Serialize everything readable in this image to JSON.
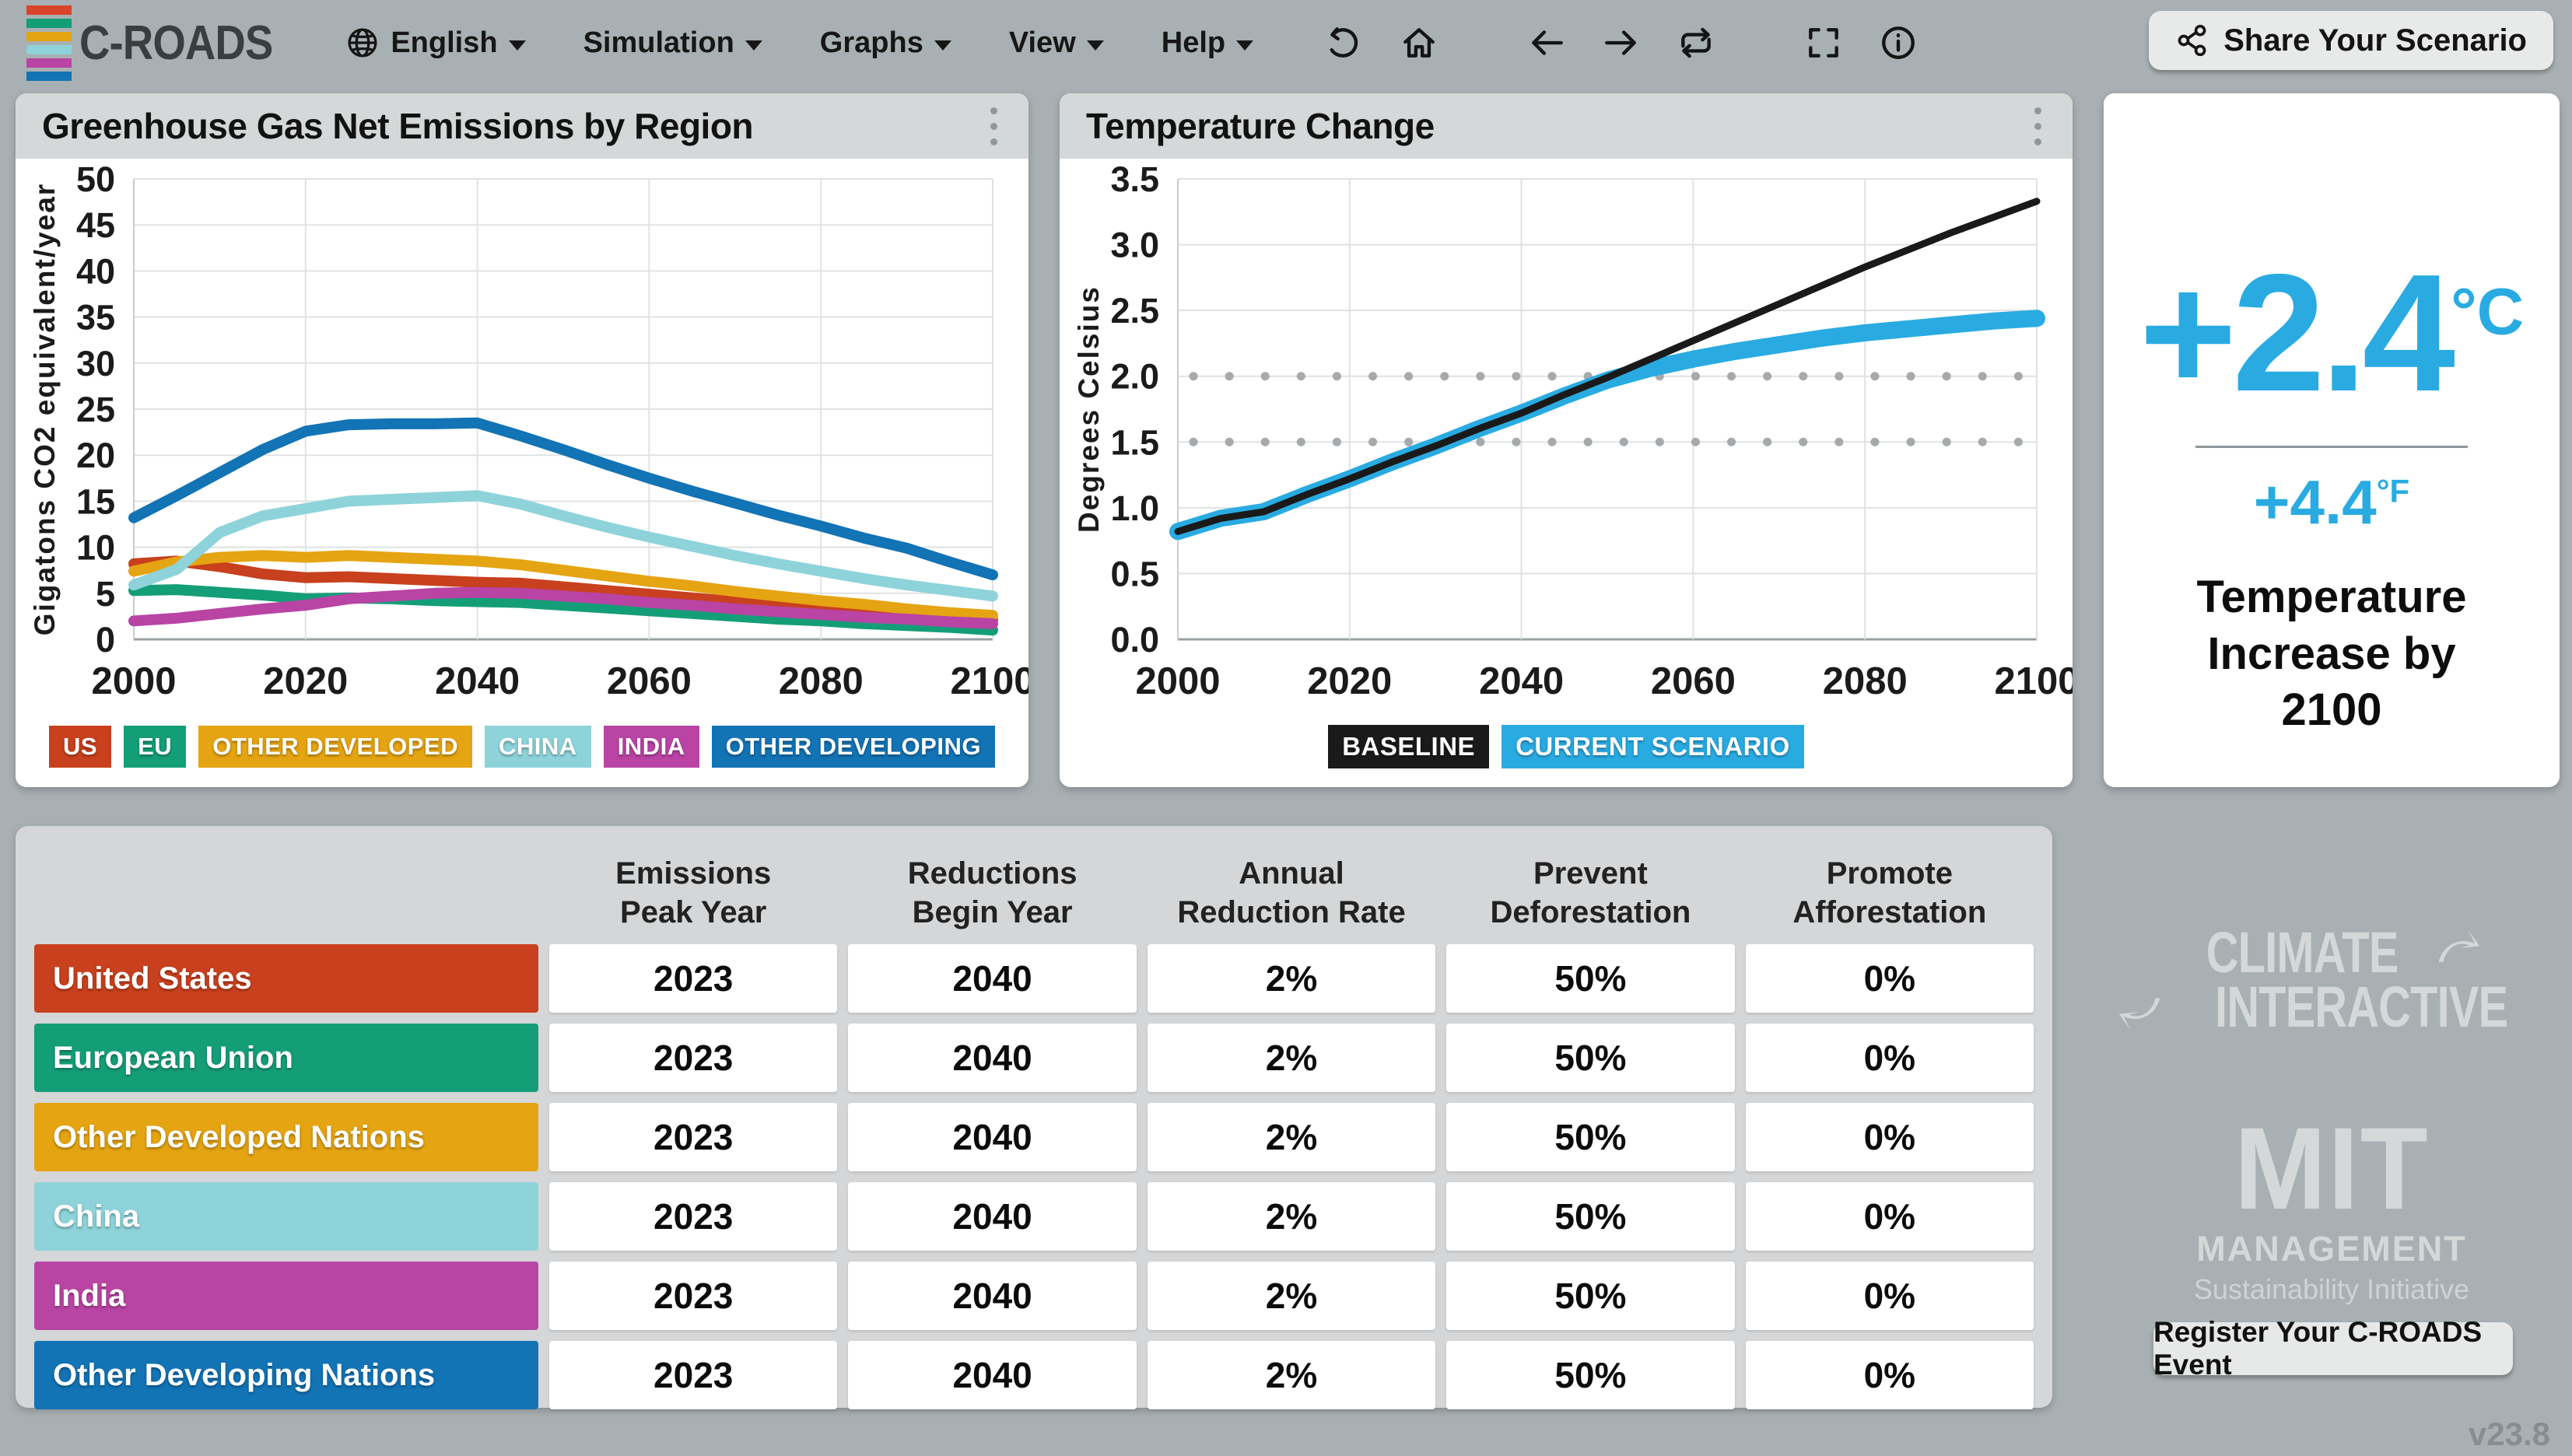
{
  "navbar": {
    "logo_text": "C-ROADS",
    "logo_bar_colors": [
      "#d8432a",
      "#149e78",
      "#e5a411",
      "#8ed3da",
      "#b944a4",
      "#1273b5"
    ],
    "menus": [
      {
        "label": "English"
      },
      {
        "label": "Simulation"
      },
      {
        "label": "Graphs"
      },
      {
        "label": "View"
      },
      {
        "label": "Help"
      }
    ],
    "share_button_label": "Share Your Scenario"
  },
  "emissions_panel": {
    "title": "Greenhouse Gas Net Emissions by Region"
  },
  "temperature_panel": {
    "title": "Temperature Change"
  },
  "summary_panel": {
    "value_c": "+2.4",
    "unit_c": "°C",
    "value_f": "+4.4",
    "unit_f": "°F",
    "caption": "Temperature Increase by 2100"
  },
  "table": {
    "columns": [
      [
        "Emissions",
        "Peak Year"
      ],
      [
        "Reductions",
        "Begin Year"
      ],
      [
        "Annual",
        "Reduction Rate"
      ],
      [
        "Prevent",
        "Deforestation"
      ],
      [
        "Promote",
        "Afforestation"
      ]
    ],
    "rows": [
      {
        "region": "United States",
        "color": "#c8401e",
        "values": [
          "2023",
          "2040",
          "2%",
          "50%",
          "0%"
        ]
      },
      {
        "region": "European Union",
        "color": "#149e78",
        "values": [
          "2023",
          "2040",
          "2%",
          "50%",
          "0%"
        ]
      },
      {
        "region": "Other Developed Nations",
        "color": "#e5a411",
        "values": [
          "2023",
          "2040",
          "2%",
          "50%",
          "0%"
        ]
      },
      {
        "region": "China",
        "color": "#8ed3da",
        "values": [
          "2023",
          "2040",
          "2%",
          "50%",
          "0%"
        ]
      },
      {
        "region": "India",
        "color": "#b944a4",
        "values": [
          "2023",
          "2040",
          "2%",
          "50%",
          "0%"
        ]
      },
      {
        "region": "Other Developing Nations",
        "color": "#1273b5",
        "values": [
          "2023",
          "2040",
          "2%",
          "50%",
          "0%"
        ]
      }
    ]
  },
  "branding": {
    "climate_interactive_line1": "CLIMATE",
    "climate_interactive_line2": "INTERACTIVE",
    "mit_line1": "MIT",
    "mit_line2": "MANAGEMENT",
    "mit_line3": "Sustainability Initiative",
    "register_button_label": "Register Your C-ROADS Event",
    "version": "v23.8"
  },
  "chart_data": [
    {
      "type": "line",
      "title": "Greenhouse Gas Net Emissions by Region",
      "xlabel": "",
      "ylabel": "Gigatons CO2 equivalent/year",
      "ylim": [
        0,
        50
      ],
      "ytick_step": 5,
      "ytick_format": "int",
      "xlim": [
        2000,
        2100
      ],
      "xticks": [
        2000,
        2020,
        2040,
        2060,
        2080,
        2100
      ],
      "grid": true,
      "legend_position": "bottom",
      "x": [
        2000,
        2005,
        2010,
        2015,
        2020,
        2025,
        2030,
        2035,
        2040,
        2045,
        2050,
        2055,
        2060,
        2065,
        2070,
        2075,
        2080,
        2085,
        2090,
        2095,
        2100
      ],
      "series": [
        {
          "name": "US",
          "color": "#c8401e",
          "values": [
            8.2,
            8.5,
            7.9,
            7.1,
            6.7,
            6.8,
            6.6,
            6.4,
            6.2,
            6.1,
            5.7,
            5.3,
            4.9,
            4.5,
            4.1,
            3.7,
            3.4,
            3.0,
            2.7,
            2.4,
            2.1
          ]
        },
        {
          "name": "EU",
          "color": "#149e78",
          "values": [
            5.3,
            5.4,
            5.1,
            4.8,
            4.4,
            4.5,
            4.4,
            4.2,
            4.1,
            4.0,
            3.7,
            3.4,
            3.1,
            2.8,
            2.5,
            2.2,
            2.0,
            1.7,
            1.5,
            1.3,
            1.0
          ]
        },
        {
          "name": "OTHER DEVELOPED",
          "color": "#e5a411",
          "values": [
            7.4,
            8.4,
            8.9,
            9.1,
            8.9,
            9.1,
            8.9,
            8.7,
            8.5,
            8.1,
            7.5,
            6.9,
            6.3,
            5.8,
            5.2,
            4.7,
            4.2,
            3.8,
            3.3,
            2.9,
            2.6
          ]
        },
        {
          "name": "CHINA",
          "color": "#8ed3da",
          "values": [
            5.9,
            7.6,
            11.6,
            13.4,
            14.2,
            15.0,
            15.2,
            15.4,
            15.6,
            14.7,
            13.4,
            12.2,
            11.1,
            10.1,
            9.1,
            8.2,
            7.4,
            6.6,
            5.9,
            5.3,
            4.7
          ]
        },
        {
          "name": "INDIA",
          "color": "#b944a4",
          "values": [
            2.0,
            2.3,
            2.8,
            3.3,
            3.7,
            4.4,
            4.7,
            5.0,
            5.1,
            5.0,
            4.7,
            4.4,
            4.0,
            3.7,
            3.3,
            3.0,
            2.7,
            2.4,
            2.2,
            1.9,
            1.7
          ]
        },
        {
          "name": "OTHER DEVELOPING",
          "color": "#1273b5",
          "values": [
            13.2,
            15.6,
            18.1,
            20.6,
            22.6,
            23.3,
            23.4,
            23.4,
            23.5,
            22.1,
            20.6,
            19.0,
            17.5,
            16.1,
            14.8,
            13.5,
            12.3,
            11.0,
            9.9,
            8.4,
            7.0
          ]
        }
      ]
    },
    {
      "type": "line",
      "title": "Temperature Change",
      "xlabel": "",
      "ylabel": "Degrees Celsius",
      "ylim": [
        0,
        3.5
      ],
      "ytick_step": 0.5,
      "ytick_format": "1dp",
      "xlim": [
        2000,
        2100
      ],
      "xticks": [
        2000,
        2020,
        2040,
        2060,
        2080,
        2100
      ],
      "grid": true,
      "reference_lines": [
        1.5,
        2.0
      ],
      "legend_position": "bottom",
      "x": [
        2000,
        2005,
        2010,
        2015,
        2020,
        2025,
        2030,
        2035,
        2040,
        2045,
        2050,
        2055,
        2060,
        2065,
        2070,
        2075,
        2080,
        2085,
        2090,
        2095,
        2100
      ],
      "series": [
        {
          "name": "CURRENT SCENARIO",
          "color": "#29abe2",
          "values": [
            0.82,
            0.92,
            0.97,
            1.1,
            1.22,
            1.35,
            1.47,
            1.6,
            1.72,
            1.85,
            1.97,
            2.06,
            2.13,
            2.19,
            2.24,
            2.29,
            2.33,
            2.36,
            2.39,
            2.42,
            2.44
          ]
        },
        {
          "name": "BASELINE",
          "color": "#1a1a1a",
          "values": [
            0.82,
            0.92,
            0.97,
            1.1,
            1.22,
            1.35,
            1.47,
            1.6,
            1.72,
            1.86,
            1.99,
            2.13,
            2.27,
            2.41,
            2.55,
            2.69,
            2.83,
            2.96,
            3.09,
            3.21,
            3.33
          ]
        }
      ]
    }
  ]
}
